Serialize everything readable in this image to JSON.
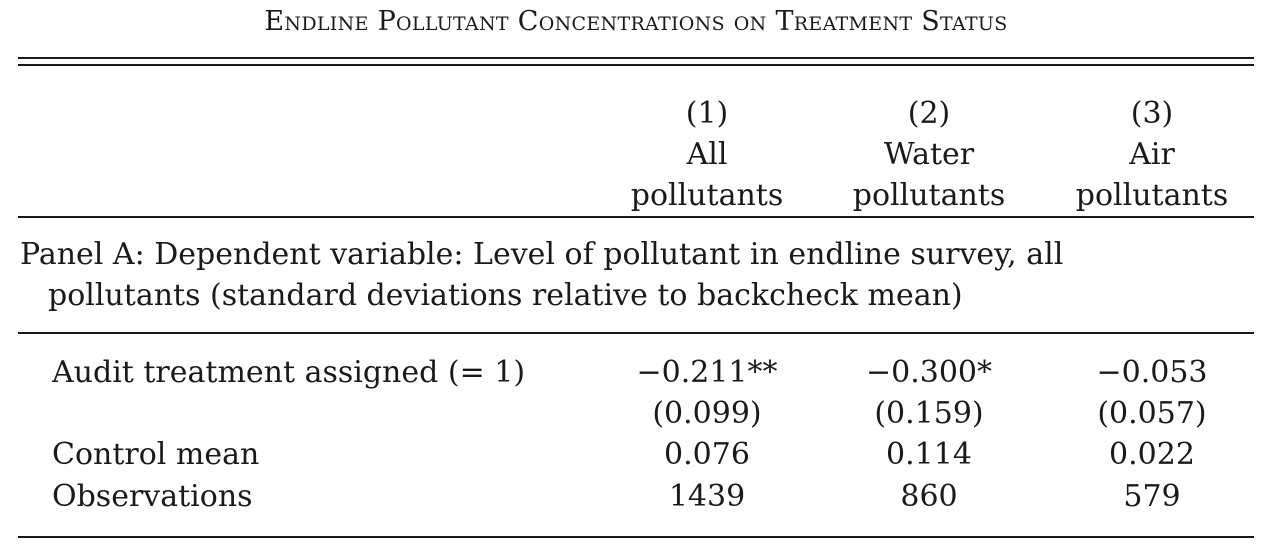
{
  "table": {
    "title": "Endline Pollutant Concentrations on Treatment Status",
    "columns": [
      {
        "number": "(1)",
        "line1": "All",
        "line2": "pollutants"
      },
      {
        "number": "(2)",
        "line1": "Water",
        "line2": "pollutants"
      },
      {
        "number": "(3)",
        "line1": "Air",
        "line2": "pollutants"
      }
    ],
    "panel": {
      "line1": "Panel A: Dependent variable: Level of pollutant in endline survey, all",
      "line2": "pollutants (standard deviations relative to backcheck mean)"
    },
    "rows": [
      {
        "label": "Audit treatment assigned (= 1)",
        "values": [
          "−0.211**",
          "−0.300*",
          "−0.053"
        ]
      },
      {
        "label": "",
        "values": [
          "(0.099)",
          "(0.159)",
          "(0.057)"
        ]
      },
      {
        "label": "Control mean",
        "values": [
          "0.076",
          "0.114",
          "0.022"
        ]
      },
      {
        "label": "Observations",
        "values": [
          "1439",
          "860",
          "579"
        ]
      }
    ]
  }
}
